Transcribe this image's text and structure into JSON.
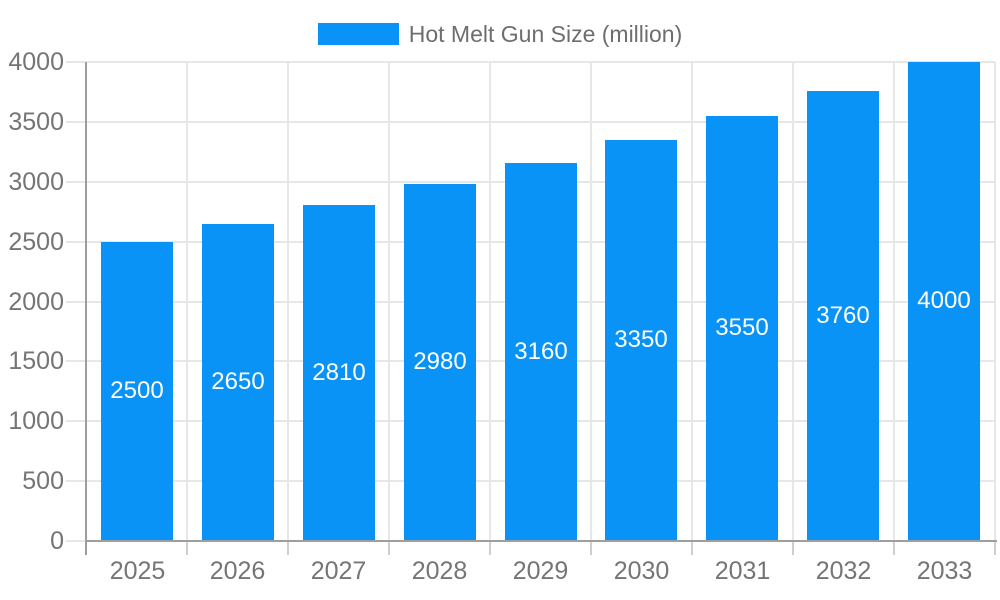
{
  "legend": {
    "label": "Hot Melt Gun Size (million)"
  },
  "chart_data": {
    "type": "bar",
    "title": "",
    "xlabel": "",
    "ylabel": "",
    "categories": [
      "2025",
      "2026",
      "2027",
      "2028",
      "2029",
      "2030",
      "2031",
      "2032",
      "2033"
    ],
    "series": [
      {
        "name": "Hot Melt Gun Size (million)",
        "values": [
          2500,
          2650,
          2810,
          2980,
          3160,
          3350,
          3550,
          3760,
          4000
        ]
      }
    ],
    "bar_value_labels": [
      "2500",
      "2650",
      "2810",
      "2980",
      "3160",
      "3350",
      "3550",
      "3760",
      "4000"
    ],
    "y_ticks": [
      0,
      500,
      1000,
      1500,
      2000,
      2500,
      3000,
      3500,
      4000
    ],
    "ylim": [
      0,
      4000
    ],
    "grid": true,
    "legend_position": "top-center"
  },
  "colors": {
    "bar": "#0a93f6",
    "grid": "#e7e7e7",
    "axis": "#9e9e9e",
    "tick": "#cfcfcf",
    "axis_label": "#757575",
    "legend_label": "#6e6e6e",
    "value_label": "#ffffff",
    "background": "#ffffff"
  }
}
